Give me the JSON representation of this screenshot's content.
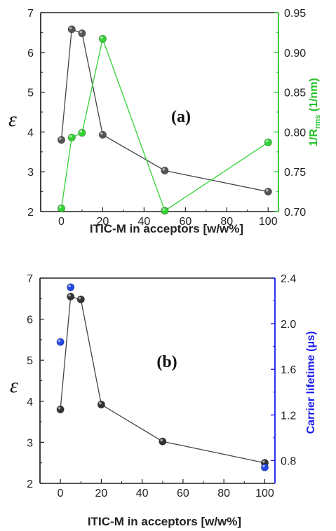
{
  "chart_data": [
    {
      "type": "line",
      "panel_label": "(a)",
      "xlabel": "ITIC-M in acceptors [w/w%]",
      "ylabel": "ε",
      "y2label": "1/Rrms (1/nm)",
      "y2label_main": "1/R",
      "y2label_sub": "rms",
      "y2label_unit": " (1/nm)",
      "xlim": [
        -10,
        105
      ],
      "ylim": [
        2,
        7
      ],
      "y2lim": [
        0.7,
        0.95
      ],
      "x_ticks": [
        "0",
        "20",
        "40",
        "60",
        "80",
        "100"
      ],
      "y_ticks": [
        "2",
        "3",
        "4",
        "5",
        "6",
        "7"
      ],
      "y2_ticks": [
        "0.70",
        "0.75",
        "0.80",
        "0.85",
        "0.90",
        "0.95"
      ],
      "grid": false,
      "colors": {
        "left_axis": "#111111",
        "right_axis": "#27c22b"
      },
      "series": [
        {
          "axis": "left",
          "color": "#555555",
          "x": [
            0,
            5,
            10,
            20,
            50,
            100
          ],
          "y": [
            3.8,
            6.58,
            6.48,
            3.93,
            3.03,
            2.5
          ]
        },
        {
          "axis": "right",
          "color": "#34d234",
          "x": [
            0,
            5,
            10,
            20,
            50,
            100
          ],
          "y": [
            0.704,
            0.793,
            0.799,
            0.917,
            0.701,
            0.787
          ]
        }
      ]
    },
    {
      "type": "scatter",
      "panel_label": "(b)",
      "xlabel": "ITIC-M in acceptors [w/w%]",
      "ylabel": "ε",
      "y2label": "Carrier lifetime (μs)",
      "xlim": [
        -10,
        105
      ],
      "ylim": [
        2,
        7
      ],
      "y2lim": [
        0.6,
        2.4
      ],
      "x_ticks": [
        "0",
        "20",
        "40",
        "60",
        "80",
        "100"
      ],
      "y_ticks": [
        "2",
        "3",
        "4",
        "5",
        "6",
        "7"
      ],
      "y2_ticks": [
        "0.8",
        "1.2",
        "1.6",
        "2.0",
        "2.4"
      ],
      "grid": false,
      "colors": {
        "left_axis": "#111111",
        "right_axis": "#1a1aee"
      },
      "series": [
        {
          "axis": "left",
          "color": "#333333",
          "line": true,
          "x": [
            0,
            5,
            10,
            20,
            50,
            100
          ],
          "y": [
            3.8,
            6.55,
            6.48,
            3.92,
            3.02,
            2.5
          ]
        },
        {
          "axis": "right",
          "color": "#2346e8",
          "line": false,
          "x": [
            0,
            5,
            100
          ],
          "y": [
            1.84,
            2.32,
            0.74
          ]
        }
      ]
    }
  ]
}
